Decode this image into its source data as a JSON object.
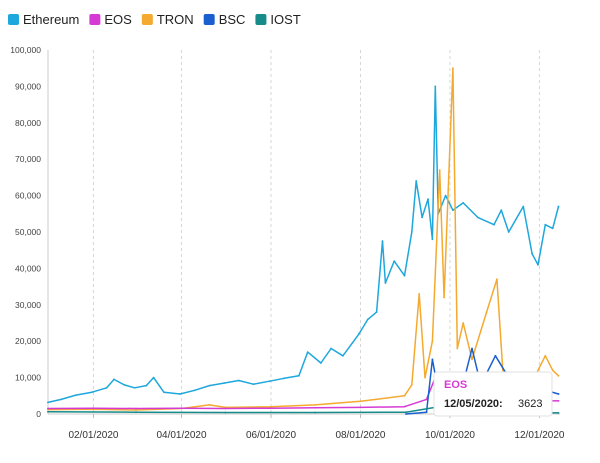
{
  "chart_data": {
    "type": "line",
    "title": "",
    "xlabel": "",
    "ylabel": "",
    "ylim": [
      0,
      100000
    ],
    "y_ticks": [
      0,
      10000,
      20000,
      30000,
      40000,
      50000,
      60000,
      70000,
      80000,
      90000,
      100000
    ],
    "y_tick_labels": [
      "0",
      "10,000",
      "20,000",
      "30,000",
      "40,000",
      "50,000",
      "60,000",
      "70,000",
      "80,000",
      "90,000",
      "100,000"
    ],
    "x_range": [
      "2020-01-01",
      "2020-12-15"
    ],
    "x_ticks": [
      "2020-02-01",
      "2020-04-01",
      "2020-06-01",
      "2020-08-01",
      "2020-10-01",
      "2020-12-01"
    ],
    "x_tick_labels": [
      "02/01/2020",
      "04/01/2020",
      "06/01/2020",
      "08/01/2020",
      "10/01/2020",
      "12/01/2020"
    ],
    "grid": "vertical dashed at x ticks",
    "legend_position": "top-left",
    "series": [
      {
        "name": "Ethereum",
        "color": "#1ea7dc",
        "points": [
          [
            "2020-01-01",
            3200
          ],
          [
            "2020-01-10",
            4000
          ],
          [
            "2020-01-20",
            5200
          ],
          [
            "2020-01-31",
            6000
          ],
          [
            "2020-02-10",
            7200
          ],
          [
            "2020-02-15",
            9500
          ],
          [
            "2020-02-22",
            8000
          ],
          [
            "2020-02-29",
            7200
          ],
          [
            "2020-03-08",
            7800
          ],
          [
            "2020-03-13",
            10000
          ],
          [
            "2020-03-20",
            6000
          ],
          [
            "2020-03-31",
            5500
          ],
          [
            "2020-04-10",
            6500
          ],
          [
            "2020-04-20",
            7800
          ],
          [
            "2020-04-30",
            8500
          ],
          [
            "2020-05-10",
            9200
          ],
          [
            "2020-05-20",
            8200
          ],
          [
            "2020-05-31",
            9000
          ],
          [
            "2020-06-10",
            9800
          ],
          [
            "2020-06-20",
            10500
          ],
          [
            "2020-06-26",
            17000
          ],
          [
            "2020-07-05",
            14000
          ],
          [
            "2020-07-12",
            18000
          ],
          [
            "2020-07-20",
            16000
          ],
          [
            "2020-07-31",
            22000
          ],
          [
            "2020-08-06",
            26000
          ],
          [
            "2020-08-12",
            28000
          ],
          [
            "2020-08-16",
            47500
          ],
          [
            "2020-08-18",
            36000
          ],
          [
            "2020-08-24",
            42000
          ],
          [
            "2020-08-31",
            38000
          ],
          [
            "2020-09-05",
            50000
          ],
          [
            "2020-09-08",
            64000
          ],
          [
            "2020-09-12",
            54000
          ],
          [
            "2020-09-16",
            59000
          ],
          [
            "2020-09-19",
            48000
          ],
          [
            "2020-09-21",
            90000
          ],
          [
            "2020-09-23",
            55000
          ],
          [
            "2020-09-28",
            60000
          ],
          [
            "2020-10-03",
            56000
          ],
          [
            "2020-10-10",
            58000
          ],
          [
            "2020-10-20",
            54000
          ],
          [
            "2020-10-31",
            52000
          ],
          [
            "2020-11-05",
            56000
          ],
          [
            "2020-11-10",
            50000
          ],
          [
            "2020-11-20",
            57000
          ],
          [
            "2020-11-26",
            44000
          ],
          [
            "2020-11-30",
            41000
          ],
          [
            "2020-12-05",
            52000
          ],
          [
            "2020-12-10",
            51000
          ],
          [
            "2020-12-14",
            57000
          ]
        ]
      },
      {
        "name": "EOS",
        "color": "#d63ad4",
        "points": [
          [
            "2020-01-01",
            1500
          ],
          [
            "2020-02-01",
            1600
          ],
          [
            "2020-03-01",
            1500
          ],
          [
            "2020-04-01",
            1600
          ],
          [
            "2020-05-01",
            1500
          ],
          [
            "2020-06-01",
            1600
          ],
          [
            "2020-07-01",
            1700
          ],
          [
            "2020-08-01",
            1800
          ],
          [
            "2020-08-31",
            2000
          ],
          [
            "2020-09-15",
            4000
          ],
          [
            "2020-09-20",
            9000
          ],
          [
            "2020-09-25",
            5000
          ],
          [
            "2020-10-05",
            4500
          ],
          [
            "2020-10-20",
            4000
          ],
          [
            "2020-11-01",
            3800
          ],
          [
            "2020-11-20",
            3700
          ],
          [
            "2020-12-05",
            3623
          ],
          [
            "2020-12-14",
            3600
          ]
        ]
      },
      {
        "name": "TRON",
        "color": "#f4a92f",
        "points": [
          [
            "2020-01-01",
            1200
          ],
          [
            "2020-02-01",
            1300
          ],
          [
            "2020-03-01",
            1100
          ],
          [
            "2020-04-01",
            1500
          ],
          [
            "2020-04-20",
            2500
          ],
          [
            "2020-05-01",
            1800
          ],
          [
            "2020-06-01",
            2000
          ],
          [
            "2020-07-01",
            2500
          ],
          [
            "2020-08-01",
            3500
          ],
          [
            "2020-08-31",
            5000
          ],
          [
            "2020-09-05",
            8000
          ],
          [
            "2020-09-10",
            33000
          ],
          [
            "2020-09-14",
            10000
          ],
          [
            "2020-09-19",
            20000
          ],
          [
            "2020-09-24",
            67000
          ],
          [
            "2020-09-27",
            32000
          ],
          [
            "2020-10-03",
            95000
          ],
          [
            "2020-10-06",
            18000
          ],
          [
            "2020-10-10",
            25000
          ],
          [
            "2020-10-16",
            15000
          ],
          [
            "2020-10-26",
            28000
          ],
          [
            "2020-11-02",
            37000
          ],
          [
            "2020-11-06",
            12000
          ],
          [
            "2020-11-15",
            9000
          ],
          [
            "2020-11-25",
            8000
          ],
          [
            "2020-12-05",
            16000
          ],
          [
            "2020-12-10",
            12000
          ],
          [
            "2020-12-14",
            10500
          ]
        ]
      },
      {
        "name": "BSC",
        "color": "#1a5fcf",
        "points": [
          [
            "2020-09-01",
            0
          ],
          [
            "2020-09-15",
            500
          ],
          [
            "2020-09-19",
            15000
          ],
          [
            "2020-09-24",
            4000
          ],
          [
            "2020-10-01",
            10000
          ],
          [
            "2020-10-06",
            2000
          ],
          [
            "2020-10-16",
            18000
          ],
          [
            "2020-10-22",
            8000
          ],
          [
            "2020-11-01",
            16000
          ],
          [
            "2020-11-10",
            10000
          ],
          [
            "2020-11-20",
            8000
          ],
          [
            "2020-12-01",
            7000
          ],
          [
            "2020-12-14",
            5500
          ]
        ]
      },
      {
        "name": "IOST",
        "color": "#178a8a",
        "points": [
          [
            "2020-01-01",
            600
          ],
          [
            "2020-03-01",
            500
          ],
          [
            "2020-05-01",
            400
          ],
          [
            "2020-07-01",
            400
          ],
          [
            "2020-09-01",
            500
          ],
          [
            "2020-10-01",
            2500
          ],
          [
            "2020-10-15",
            1000
          ],
          [
            "2020-11-15",
            500
          ],
          [
            "2020-12-14",
            300
          ]
        ]
      }
    ],
    "tooltip": {
      "series": "EOS",
      "date_label": "12/05/2020:",
      "value_label": "3623",
      "color": "#d63ad4",
      "date": "2020-12-05",
      "value": 3623
    }
  }
}
